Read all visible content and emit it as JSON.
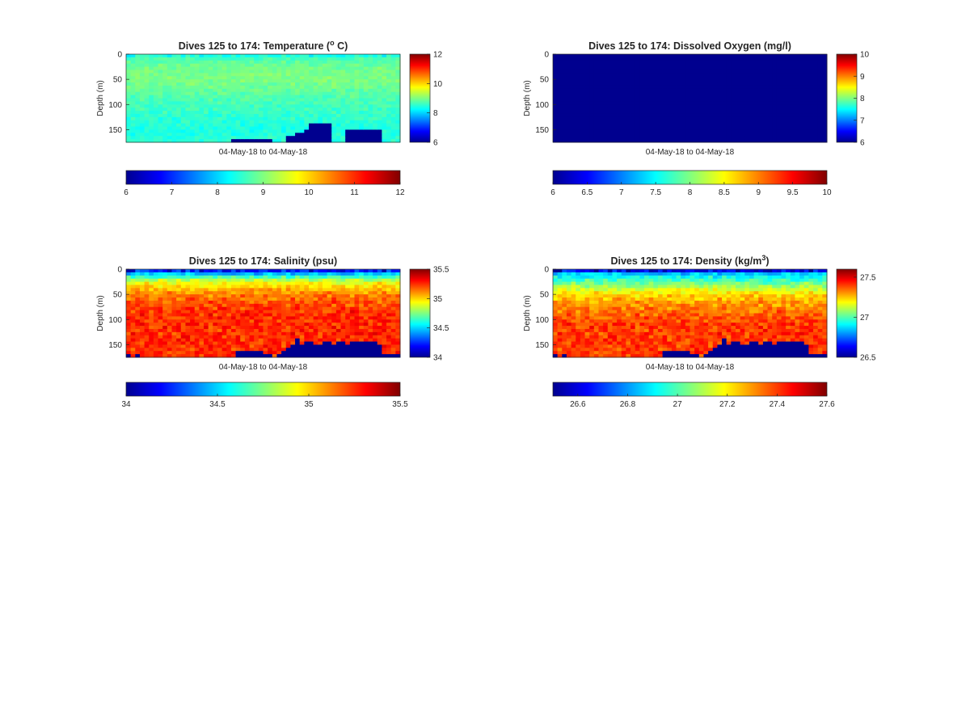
{
  "colormap": [
    "#00008f",
    "#0000ff",
    "#0080ff",
    "#00ffff",
    "#80ff80",
    "#ffff00",
    "#ff8000",
    "#ff0000",
    "#800000"
  ],
  "chart_data": [
    {
      "type": "heatmap",
      "title": "Dives 125 to 174: Temperature (",
      "title_sup": "o",
      "title_after": " C)",
      "xlabel": "04-May-18 to 04-May-18",
      "ylabel": "Depth (m)",
      "ylim": [
        0,
        175
      ],
      "yticks": [
        0,
        50,
        100,
        150
      ],
      "clim": [
        6,
        12
      ],
      "side_colorbar_ticks": [
        6,
        8,
        10,
        12
      ],
      "bottom_colorbar_ticks": [
        6,
        7,
        8,
        9,
        10,
        11,
        12
      ],
      "profile": [
        8.6,
        8.9,
        9.0,
        8.9,
        8.7,
        8.6,
        8.5,
        8.4,
        8.5
      ],
      "surface_value": 8.4,
      "column_noise": 0.15,
      "seafloor_depth": [
        176,
        176,
        176,
        176,
        176,
        176,
        176,
        176,
        176,
        176,
        176,
        176,
        176,
        176,
        176,
        176,
        176,
        176,
        176,
        176,
        176,
        176,
        176,
        176,
        176,
        176,
        176,
        176,
        176,
        176,
        176,
        176,
        176,
        176,
        176,
        176,
        176,
        176,
        176,
        176,
        176,
        176,
        176,
        176,
        176,
        176,
        176,
        176,
        176,
        176,
        176,
        176,
        176,
        176,
        176,
        176,
        176,
        176,
        176,
        176,
        176,
        176,
        176,
        176,
        176,
        176,
        176,
        176,
        176,
        176,
        176,
        176,
        176,
        176,
        176,
        176,
        176,
        176,
        176,
        176,
        176,
        176,
        176,
        176,
        176,
        176,
        176,
        176,
        176,
        176,
        176,
        176,
        176,
        176,
        176,
        176,
        176,
        176,
        176,
        176,
        176,
        176,
        176,
        176,
        176,
        176,
        176,
        176,
        176,
        176,
        176,
        176,
        176,
        176,
        176,
        176,
        176,
        176,
        176,
        176,
        176,
        176,
        176,
        176,
        176,
        176,
        176,
        176,
        176,
        176,
        176,
        176,
        176,
        176,
        176,
        176,
        176,
        176,
        176,
        176,
        176,
        176,
        176,
        176,
        176,
        176,
        176,
        176,
        176,
        176
      ]
    },
    {
      "type": "heatmap",
      "title": "Dives 125 to 174: Dissolved Oxygen (mg/l)",
      "xlabel": "04-May-18 to 04-May-18",
      "ylabel": "Depth (m)",
      "ylim": [
        0,
        175
      ],
      "yticks": [
        0,
        50,
        100,
        150
      ],
      "clim": [
        6,
        10
      ],
      "side_colorbar_ticks": [
        6,
        7,
        8,
        9,
        10
      ],
      "bottom_colorbar_ticks": [
        6,
        6.5,
        7,
        7.5,
        8,
        8.5,
        9,
        9.5,
        10
      ],
      "uniform_value": 6
    },
    {
      "type": "heatmap",
      "title": "Dives 125 to 174: Salinity (psu)",
      "xlabel": "04-May-18 to 04-May-18",
      "ylabel": "Depth (m)",
      "ylim": [
        0,
        175
      ],
      "yticks": [
        0,
        50,
        100,
        150
      ],
      "clim": [
        34,
        35.5
      ],
      "side_colorbar_ticks": [
        34,
        34.5,
        35,
        35.5
      ],
      "bottom_colorbar_ticks": [
        34,
        34.5,
        35,
        35.5
      ],
      "profile": [
        34.3,
        34.9,
        35.1,
        35.2,
        35.25,
        35.25,
        35.25,
        35.25,
        35.25
      ],
      "surface_value": 34.2,
      "column_noise": 0.08
    },
    {
      "type": "heatmap",
      "title": "Dives 125 to 174: Density (kg/m",
      "title_sup": "3",
      "title_after": ")",
      "xlabel": "04-May-18 to 04-May-18",
      "ylabel": "Depth (m)",
      "ylim": [
        0,
        175
      ],
      "yticks": [
        0,
        50,
        100,
        150
      ],
      "clim": [
        26.5,
        27.6
      ],
      "side_colorbar_ticks": [
        26.5,
        27,
        27.5
      ],
      "bottom_colorbar_ticks": [
        26.6,
        26.8,
        27,
        27.2,
        27.4,
        27.6
      ],
      "profile": [
        26.8,
        27.0,
        27.2,
        27.3,
        27.35,
        27.4,
        27.4,
        27.4,
        27.4
      ],
      "surface_value": 26.6,
      "column_noise": 0.06
    }
  ]
}
